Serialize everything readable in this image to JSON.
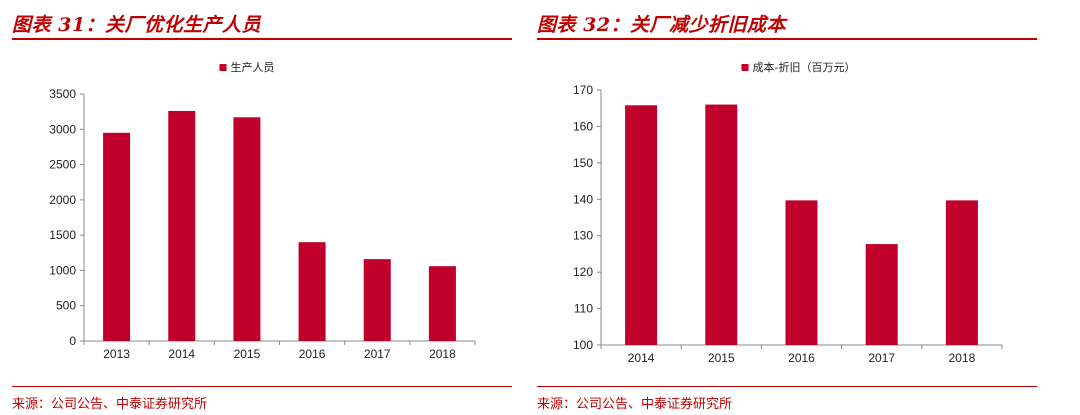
{
  "left_panel": {
    "title": "图表 31：关厂优化生产人员",
    "source": "来源：公司公告、中泰证券研究所"
  },
  "right_panel": {
    "title": "图表 32：关厂减少折旧成本",
    "source": "来源：公司公告、中泰证券研究所"
  },
  "chart_data": [
    {
      "type": "bar",
      "categories": [
        "2013",
        "2014",
        "2015",
        "2016",
        "2017",
        "2018"
      ],
      "series": [
        {
          "name": "生产人员",
          "values": [
            2950,
            3260,
            3170,
            1400,
            1160,
            1060
          ]
        }
      ],
      "ylim": [
        0,
        3500
      ],
      "yticks": [
        0,
        500,
        1000,
        1500,
        2000,
        2500,
        3000,
        3500
      ],
      "legend": "top-center",
      "grid": false,
      "color": "#c0002a"
    },
    {
      "type": "bar",
      "categories": [
        "2014",
        "2015",
        "2016",
        "2017",
        "2018"
      ],
      "series": [
        {
          "name": "成本-折旧（百万元）",
          "values": [
            165.8,
            166,
            139.7,
            127.7,
            139.7
          ]
        }
      ],
      "ylim": [
        100,
        170
      ],
      "yticks": [
        100,
        110,
        120,
        130,
        140,
        150,
        160,
        170
      ],
      "legend": "top-center",
      "grid": false,
      "color": "#c0002a"
    }
  ]
}
